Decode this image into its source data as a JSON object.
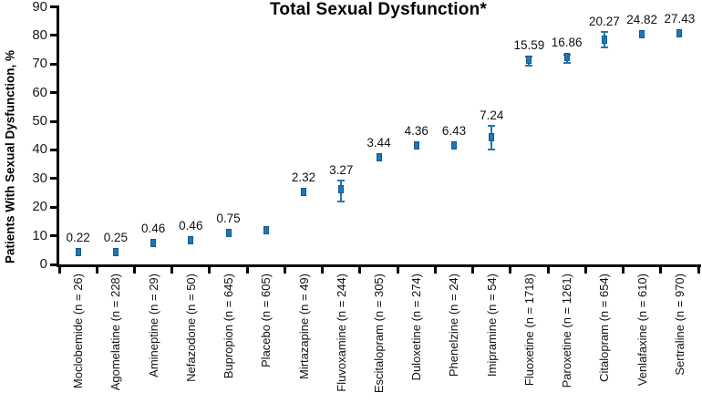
{
  "chart_data": {
    "type": "scatter",
    "title": "Total Sexual Dysfunction*",
    "xlabel": "",
    "ylabel": "Patients With Sexual Dysfunction, %",
    "ylim": [
      0,
      90
    ],
    "yticks": [
      0,
      10,
      20,
      30,
      40,
      50,
      60,
      70,
      80,
      90
    ],
    "grid": false,
    "legend": false,
    "marker_color": "#1f77b4",
    "marker_shape": "square",
    "points": [
      {
        "category": "Moclobemide (n = 26)",
        "value": 4.2,
        "annotation": "0.22",
        "err_low": null,
        "err_high": null
      },
      {
        "category": "Agomelatine (n = 228)",
        "value": 4.2,
        "annotation": "0.25",
        "err_low": null,
        "err_high": null
      },
      {
        "category": "Amineptine (n = 29)",
        "value": 7.5,
        "annotation": "0.46",
        "err_low": null,
        "err_high": null
      },
      {
        "category": "Nefazodone (n = 50)",
        "value": 8.3,
        "annotation": "0.46",
        "err_low": null,
        "err_high": null
      },
      {
        "category": "Bupropion (n = 645)",
        "value": 10.9,
        "annotation": "0.75",
        "err_low": null,
        "err_high": null
      },
      {
        "category": "Placebo (n = 605)",
        "value": 11.8,
        "annotation": "",
        "err_low": null,
        "err_high": null
      },
      {
        "category": "Mirtazapine (n = 49)",
        "value": 25.2,
        "annotation": "2.32",
        "err_low": null,
        "err_high": null
      },
      {
        "category": "Fluvoxamine (n = 244)",
        "value": 26.2,
        "annotation": "3.27",
        "err_low": 22.0,
        "err_high": 29.3
      },
      {
        "category": "Escitalopram (n = 305)",
        "value": 37.4,
        "annotation": "3.44",
        "err_low": null,
        "err_high": null
      },
      {
        "category": "Duloxetine (n = 274)",
        "value": 41.7,
        "annotation": "4.36",
        "err_low": null,
        "err_high": null
      },
      {
        "category": "Phenelzine (n = 24)",
        "value": 41.7,
        "annotation": "6.43",
        "err_low": null,
        "err_high": null
      },
      {
        "category": "Imipramine (n = 54)",
        "value": 44.5,
        "annotation": "7.24",
        "err_low": 40.3,
        "err_high": 48.3
      },
      {
        "category": "Fluoxetine (n = 1718)",
        "value": 71.6,
        "annotation": "15.59",
        "err_low": 69.4,
        "err_high": 72.5
      },
      {
        "category": "Paroxetine (n = 1261)",
        "value": 72.4,
        "annotation": "16.86",
        "err_low": 70.4,
        "err_high": 73.3
      },
      {
        "category": "Citalopram (n = 654)",
        "value": 78.6,
        "annotation": "20.27",
        "err_low": 75.7,
        "err_high": 81.2
      },
      {
        "category": "Venlafaxine (n = 610)",
        "value": 80.6,
        "annotation": "24.82",
        "err_low": null,
        "err_high": null
      },
      {
        "category": "Sertraline (n = 970)",
        "value": 80.8,
        "annotation": "27.43",
        "err_low": null,
        "err_high": null
      }
    ]
  }
}
